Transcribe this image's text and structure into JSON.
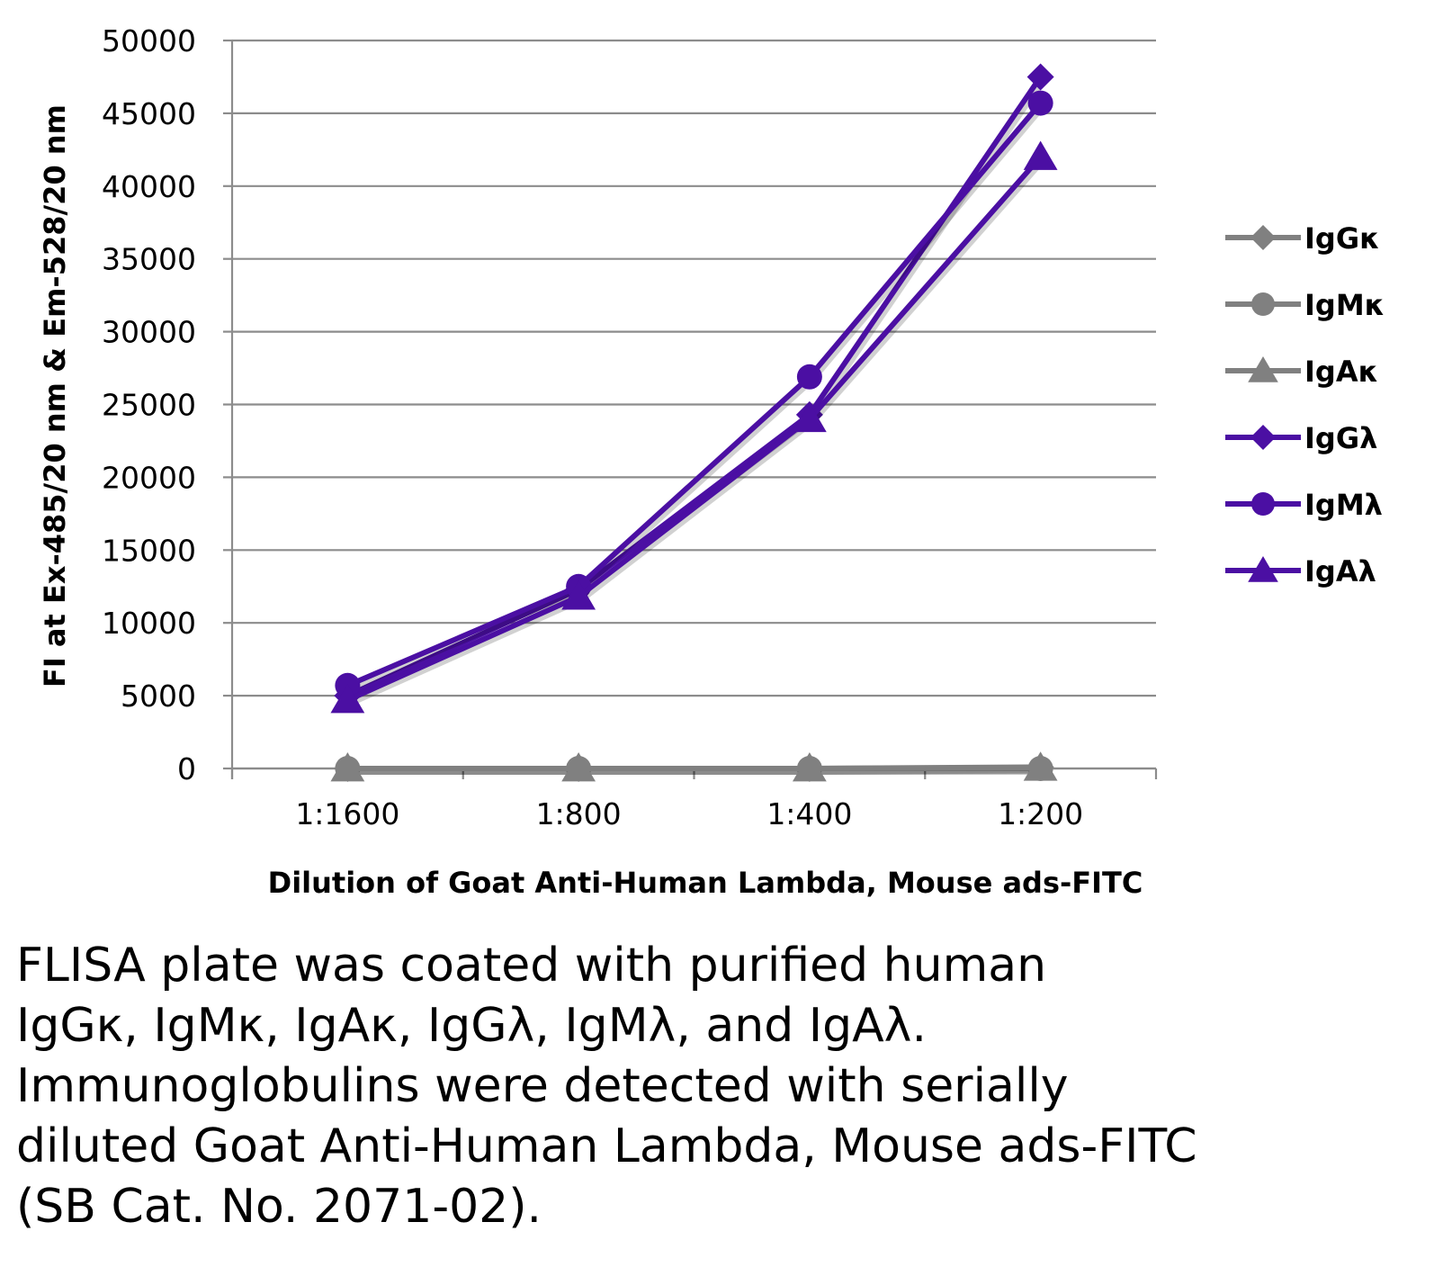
{
  "chart_data": {
    "type": "line",
    "title": "",
    "xlabel": "Dilution of Goat Anti-Human Lambda, Mouse ads-FITC",
    "ylabel": "FI at Ex-485/20 nm & Em-528/20 nm",
    "categories": [
      "1:1600",
      "1:800",
      "1:400",
      "1:200"
    ],
    "ylim": [
      0,
      50000
    ],
    "yticks": [
      0,
      5000,
      10000,
      15000,
      20000,
      25000,
      30000,
      35000,
      40000,
      45000,
      50000
    ],
    "grid": true,
    "legend_position": "right",
    "series": [
      {
        "name": "IgGκ",
        "values": [
          0,
          0,
          0,
          100
        ],
        "color": "#808080",
        "marker": "diamond"
      },
      {
        "name": "IgMκ",
        "values": [
          0,
          0,
          0,
          0
        ],
        "color": "#808080",
        "marker": "circle"
      },
      {
        "name": "IgAκ",
        "values": [
          0,
          0,
          0,
          50
        ],
        "color": "#808080",
        "marker": "triangle"
      },
      {
        "name": "IgGλ",
        "values": [
          5000,
          12300,
          24300,
          47500
        ],
        "color": "#4b0fa3",
        "marker": "diamond"
      },
      {
        "name": "IgMλ",
        "values": [
          5700,
          12500,
          26900,
          45700
        ],
        "color": "#4b0fa3",
        "marker": "circle"
      },
      {
        "name": "IgAλ",
        "values": [
          4700,
          11800,
          24000,
          42000
        ],
        "color": "#4b0fa3",
        "marker": "triangle"
      }
    ]
  },
  "caption": {
    "lines": [
      "FLISA plate was coated with purified human",
      "IgGκ, IgMκ, IgAκ, IgGλ, IgMλ, and IgAλ.",
      "Immunoglobulins were detected with serially",
      "diluted Goat Anti-Human Lambda, Mouse ads-FITC",
      "(SB Cat. No. 2071-02)."
    ]
  }
}
